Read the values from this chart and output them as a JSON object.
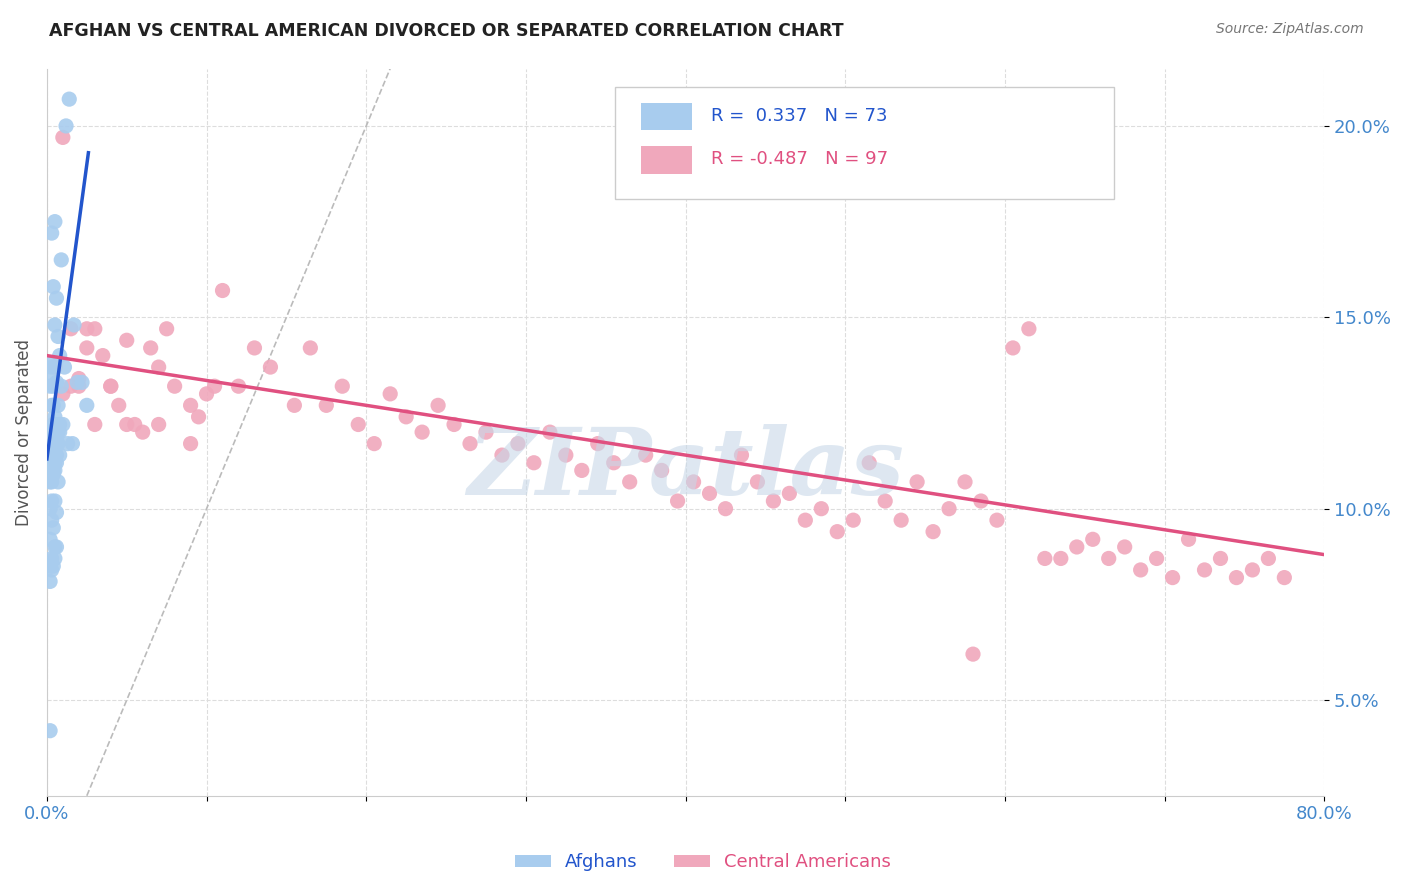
{
  "title": "AFGHAN VS CENTRAL AMERICAN DIVORCED OR SEPARATED CORRELATION CHART",
  "source": "Source: ZipAtlas.com",
  "ylabel": "Divorced or Separated",
  "xmin": 0.0,
  "xmax": 0.8,
  "ymin": 0.025,
  "ymax": 0.215,
  "xticks": [
    0.0,
    0.1,
    0.2,
    0.3,
    0.4,
    0.5,
    0.6,
    0.7,
    0.8
  ],
  "yticks": [
    0.05,
    0.1,
    0.15,
    0.2
  ],
  "ytick_labels": [
    "5.0%",
    "10.0%",
    "15.0%",
    "20.0%"
  ],
  "afghan_color": "#a8ccee",
  "central_color": "#f0a8bc",
  "afghan_trend_color": "#2255cc",
  "central_trend_color": "#e05080",
  "ref_line_color": "#bbbbbb",
  "legend_R_afghan": "R =  0.337",
  "legend_N_afghan": "N = 73",
  "legend_R_central": "R = -0.487",
  "legend_N_central": "N = 97",
  "watermark": "ZIPatlas",
  "watermark_color": "#c8d8e8",
  "afghan_dots_x": [
    0.008,
    0.005,
    0.003,
    0.012,
    0.006,
    0.009,
    0.004,
    0.007,
    0.003,
    0.005,
    0.002,
    0.014,
    0.006,
    0.003,
    0.008,
    0.004,
    0.005,
    0.007,
    0.009,
    0.011,
    0.002,
    0.004,
    0.003,
    0.006,
    0.004,
    0.005,
    0.007,
    0.008,
    0.01,
    0.003,
    0.004,
    0.006,
    0.002,
    0.003,
    0.005,
    0.003,
    0.007,
    0.004,
    0.006,
    0.003,
    0.002,
    0.005,
    0.003,
    0.008,
    0.004,
    0.003,
    0.006,
    0.002,
    0.005,
    0.004,
    0.003,
    0.007,
    0.002,
    0.005,
    0.006,
    0.003,
    0.004,
    0.002,
    0.005,
    0.003,
    0.004,
    0.006,
    0.002,
    0.017,
    0.019,
    0.022,
    0.013,
    0.016,
    0.025,
    0.002,
    0.003,
    0.002,
    0.005
  ],
  "afghan_dots_y": [
    0.14,
    0.175,
    0.172,
    0.2,
    0.155,
    0.165,
    0.158,
    0.145,
    0.135,
    0.148,
    0.138,
    0.207,
    0.133,
    0.137,
    0.122,
    0.132,
    0.122,
    0.127,
    0.132,
    0.137,
    0.132,
    0.127,
    0.127,
    0.117,
    0.122,
    0.124,
    0.117,
    0.12,
    0.122,
    0.12,
    0.114,
    0.117,
    0.112,
    0.114,
    0.115,
    0.11,
    0.12,
    0.117,
    0.114,
    0.112,
    0.11,
    0.112,
    0.107,
    0.114,
    0.11,
    0.109,
    0.112,
    0.107,
    0.11,
    0.109,
    0.102,
    0.107,
    0.1,
    0.102,
    0.099,
    0.097,
    0.095,
    0.092,
    0.09,
    0.087,
    0.085,
    0.09,
    0.081,
    0.148,
    0.133,
    0.133,
    0.117,
    0.117,
    0.127,
    0.042,
    0.084,
    0.085,
    0.087
  ],
  "central_dots_x": [
    0.005,
    0.01,
    0.015,
    0.02,
    0.025,
    0.03,
    0.035,
    0.04,
    0.045,
    0.05,
    0.055,
    0.06,
    0.065,
    0.07,
    0.075,
    0.08,
    0.09,
    0.095,
    0.1,
    0.105,
    0.11,
    0.12,
    0.13,
    0.14,
    0.155,
    0.165,
    0.175,
    0.185,
    0.195,
    0.205,
    0.215,
    0.225,
    0.235,
    0.245,
    0.255,
    0.265,
    0.275,
    0.285,
    0.295,
    0.305,
    0.315,
    0.325,
    0.335,
    0.345,
    0.355,
    0.365,
    0.375,
    0.385,
    0.395,
    0.405,
    0.415,
    0.425,
    0.435,
    0.445,
    0.455,
    0.465,
    0.475,
    0.485,
    0.495,
    0.505,
    0.515,
    0.525,
    0.535,
    0.545,
    0.555,
    0.565,
    0.575,
    0.585,
    0.595,
    0.605,
    0.615,
    0.625,
    0.635,
    0.645,
    0.655,
    0.665,
    0.675,
    0.685,
    0.695,
    0.705,
    0.715,
    0.725,
    0.735,
    0.745,
    0.755,
    0.765,
    0.775,
    0.01,
    0.015,
    0.02,
    0.025,
    0.03,
    0.04,
    0.05,
    0.07,
    0.09,
    0.58
  ],
  "central_dots_y": [
    0.137,
    0.13,
    0.132,
    0.134,
    0.142,
    0.147,
    0.14,
    0.132,
    0.127,
    0.144,
    0.122,
    0.12,
    0.142,
    0.137,
    0.147,
    0.132,
    0.127,
    0.124,
    0.13,
    0.132,
    0.157,
    0.132,
    0.142,
    0.137,
    0.127,
    0.142,
    0.127,
    0.132,
    0.122,
    0.117,
    0.13,
    0.124,
    0.12,
    0.127,
    0.122,
    0.117,
    0.12,
    0.114,
    0.117,
    0.112,
    0.12,
    0.114,
    0.11,
    0.117,
    0.112,
    0.107,
    0.114,
    0.11,
    0.102,
    0.107,
    0.104,
    0.1,
    0.114,
    0.107,
    0.102,
    0.104,
    0.097,
    0.1,
    0.094,
    0.097,
    0.112,
    0.102,
    0.097,
    0.107,
    0.094,
    0.1,
    0.107,
    0.102,
    0.097,
    0.142,
    0.147,
    0.087,
    0.087,
    0.09,
    0.092,
    0.087,
    0.09,
    0.084,
    0.087,
    0.082,
    0.092,
    0.084,
    0.087,
    0.082,
    0.084,
    0.087,
    0.082,
    0.197,
    0.147,
    0.132,
    0.147,
    0.122,
    0.132,
    0.122,
    0.122,
    0.117,
    0.062
  ],
  "afghan_trend_x": [
    0.0,
    0.026
  ],
  "afghan_trend_y": [
    0.113,
    0.193
  ],
  "central_trend_x": [
    0.0,
    0.8
  ],
  "central_trend_y": [
    0.14,
    0.088
  ],
  "ref_line_x": [
    0.025,
    0.215
  ],
  "ref_line_y": [
    0.025,
    0.215
  ]
}
